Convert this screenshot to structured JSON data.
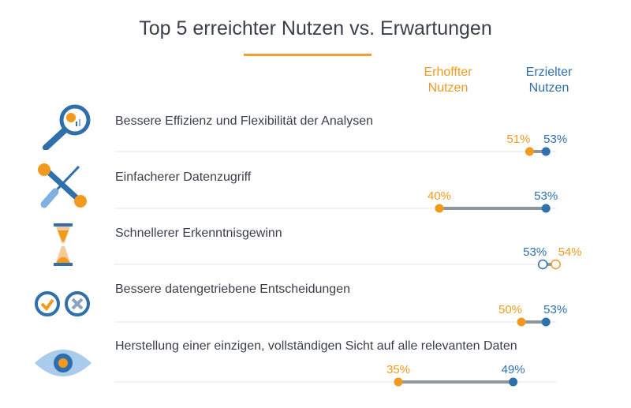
{
  "chart_data": {
    "type": "dumbbell",
    "title": "Top 5 erreichter Nutzen vs. Erwartungen",
    "legend": [
      {
        "name": "Erhoffter Nutzen",
        "color": "#f29a1f"
      },
      {
        "name": "Erzielter Nutzen",
        "color": "#2e6fac"
      }
    ],
    "categories": [
      "Bessere Effizienz und Flexibilität der Analysen",
      "Einfacherer Datenzugriff",
      "Schnellerer Erkenntnisgewinn",
      "Bessere datengetriebene Entscheidungen",
      "Herstellung einer einzigen, vollständigen Sicht auf alle relevanten Daten"
    ],
    "series": [
      {
        "name": "Erhoffter Nutzen",
        "values": [
          51,
          40,
          54,
          50,
          35
        ],
        "labels": [
          "51%",
          "40%",
          "54%",
          "50%",
          "35%"
        ]
      },
      {
        "name": "Erzielter Nutzen",
        "values": [
          53,
          53,
          53,
          53,
          49
        ],
        "labels": [
          "53%",
          "53%",
          "53%",
          "53%",
          "49%"
        ]
      }
    ],
    "icons": [
      "magnifier-chart-icon",
      "tools-icon",
      "hourglass-icon",
      "check-cross-icon",
      "eye-icon"
    ]
  },
  "legend_labels": {
    "hoped_line1": "Erhoffter",
    "hoped_line2": "Nutzen",
    "achieved_line1": "Erzielter",
    "achieved_line2": "Nutzen"
  }
}
